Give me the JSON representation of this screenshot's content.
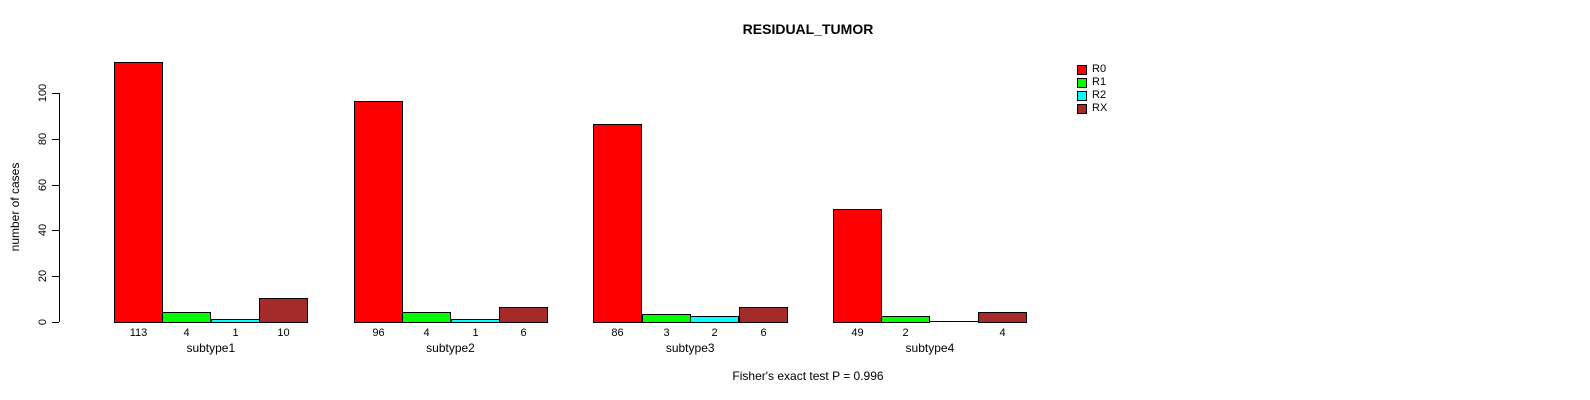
{
  "page": {
    "title": "RESIDUAL_TUMOR",
    "footer": "Fisher's exact test P = 0.996"
  },
  "chart_data": {
    "type": "bar",
    "title": "RESIDUAL_TUMOR",
    "xlabel": "",
    "ylabel": "number of cases",
    "categories": [
      "subtype1",
      "subtype2",
      "subtype3",
      "subtype4"
    ],
    "series": [
      {
        "name": "R0",
        "color": "#FF0000",
        "values": [
          113,
          96,
          86,
          49
        ]
      },
      {
        "name": "R1",
        "color": "#00FF00",
        "values": [
          4,
          4,
          3,
          2
        ]
      },
      {
        "name": "R2",
        "color": "#00FFFF",
        "values": [
          1,
          1,
          2,
          0
        ]
      },
      {
        "name": "RX",
        "color": "#A52A2A",
        "values": [
          10,
          6,
          6,
          4
        ]
      }
    ],
    "yticks": [
      0,
      20,
      40,
      60,
      80,
      100
    ],
    "ylim": [
      0,
      115
    ],
    "grid": false,
    "legend_position": "right",
    "bar_value_labels": true,
    "zero_value_label_hidden": true,
    "annotation": "Fisher's exact test P = 0.996"
  }
}
